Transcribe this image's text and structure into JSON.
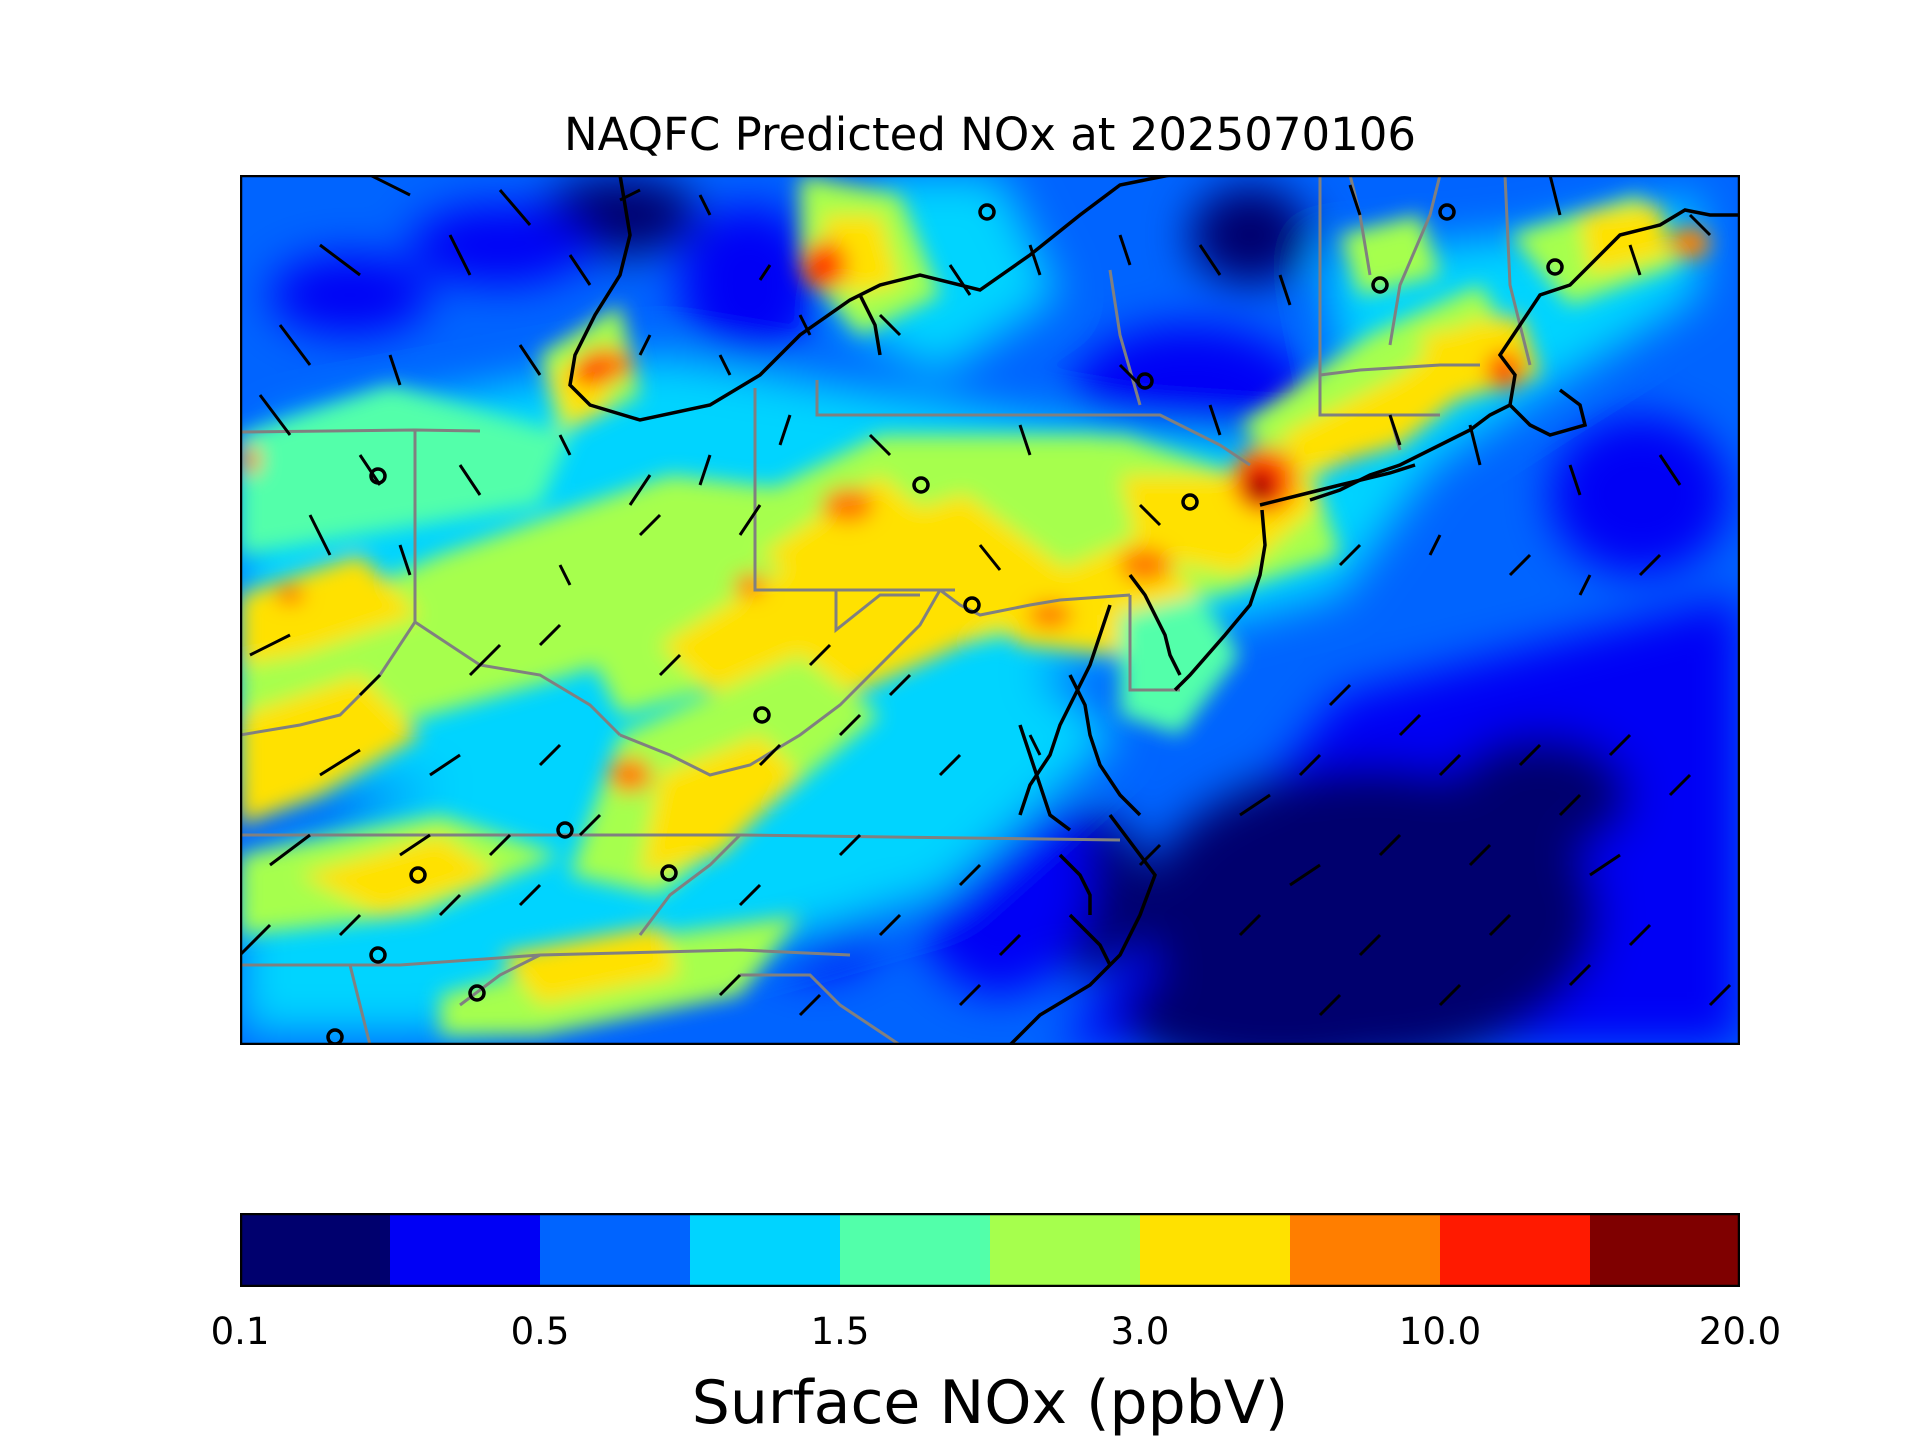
{
  "title": "NAQFC Predicted NOx at 2025070106",
  "colorbar": {
    "label": "Surface NOx (ppbV)",
    "colors": [
      "#00006e",
      "#0000f5",
      "#0064ff",
      "#00d4ff",
      "#52ffaa",
      "#a6ff4d",
      "#ffe100",
      "#ff7e00",
      "#ff1a00",
      "#7f0000"
    ],
    "tick_labels": [
      "0.1",
      "0.5",
      "1.5",
      "3.0",
      "10.0",
      "20.0"
    ]
  },
  "map": {
    "field": "Surface NOx",
    "units": "ppbV",
    "region": "Eastern United States",
    "colormap": "jet",
    "border_color": "#808080",
    "coast_color": "#000000"
  }
}
